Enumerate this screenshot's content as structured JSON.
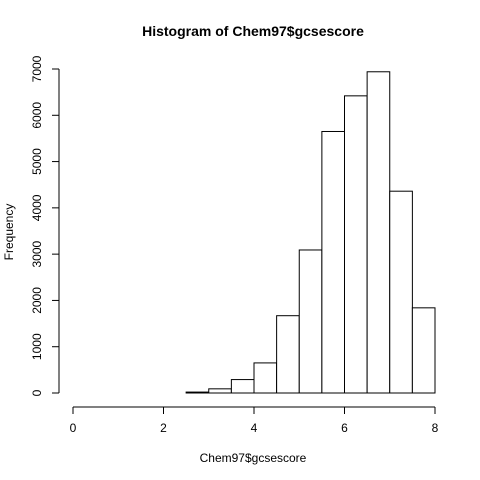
{
  "chart_data": {
    "type": "bar",
    "title": "Histogram of Chem97$gcsescore",
    "xlabel": "Chem97$gcsescore",
    "ylabel": "Frequency",
    "xlim": [
      0,
      8
    ],
    "ylim": [
      0,
      7000
    ],
    "x_ticks": [
      0,
      2,
      4,
      6,
      8
    ],
    "y_ticks": [
      0,
      1000,
      2000,
      3000,
      4000,
      5000,
      6000,
      7000
    ],
    "bins": [
      {
        "from": 0.0,
        "to": 0.5,
        "value": 0
      },
      {
        "from": 0.5,
        "to": 1.0,
        "value": 0
      },
      {
        "from": 1.0,
        "to": 1.5,
        "value": 0
      },
      {
        "from": 1.5,
        "to": 2.0,
        "value": 0
      },
      {
        "from": 2.0,
        "to": 2.5,
        "value": 0
      },
      {
        "from": 2.5,
        "to": 3.0,
        "value": 20
      },
      {
        "from": 3.0,
        "to": 3.5,
        "value": 90
      },
      {
        "from": 3.5,
        "to": 4.0,
        "value": 290
      },
      {
        "from": 4.0,
        "to": 4.5,
        "value": 650
      },
      {
        "from": 4.5,
        "to": 5.0,
        "value": 1670
      },
      {
        "from": 5.0,
        "to": 5.5,
        "value": 3090
      },
      {
        "from": 5.5,
        "to": 6.0,
        "value": 5650
      },
      {
        "from": 6.0,
        "to": 6.5,
        "value": 6420
      },
      {
        "from": 6.5,
        "to": 7.0,
        "value": 6940
      },
      {
        "from": 7.0,
        "to": 7.5,
        "value": 4360
      },
      {
        "from": 7.5,
        "to": 8.0,
        "value": 1840
      }
    ],
    "grid": false,
    "legend": "none"
  }
}
